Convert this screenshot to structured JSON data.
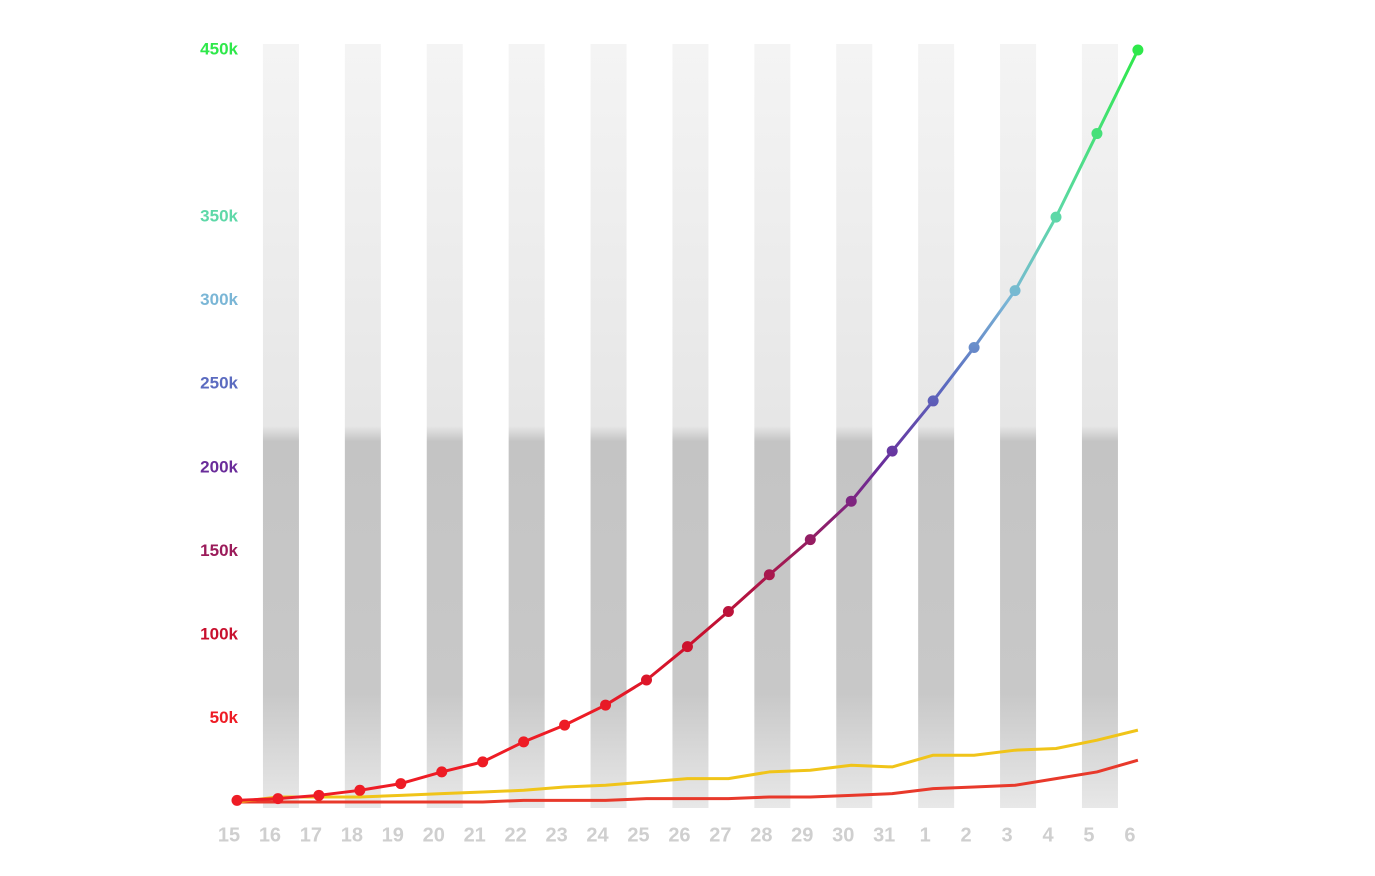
{
  "chart_data": {
    "type": "line",
    "categories": [
      "15",
      "16",
      "17",
      "18",
      "19",
      "20",
      "21",
      "22",
      "23",
      "24",
      "25",
      "26",
      "27",
      "28",
      "29",
      "30",
      "31",
      "1",
      "2",
      "3",
      "4",
      "5",
      "6"
    ],
    "series": [
      {
        "values": [
          1000,
          2000,
          4000,
          7000,
          11000,
          18000,
          24000,
          36000,
          46000,
          58000,
          73000,
          93000,
          114000,
          136000,
          157000,
          180000,
          210000,
          240000,
          272000,
          306000,
          350000,
          400000,
          450000
        ],
        "markers": true
      },
      {
        "color": "#f0c419",
        "values": [
          0,
          3000,
          3000,
          3000,
          4000,
          5000,
          6000,
          7000,
          9000,
          10000,
          12000,
          14000,
          14000,
          18000,
          19000,
          22000,
          21000,
          28000,
          28000,
          31000,
          32000,
          37000,
          43000
        ]
      },
      {
        "color": "#e8392b",
        "values": [
          0,
          0,
          0,
          0,
          0,
          0,
          0,
          1000,
          1000,
          1000,
          2000,
          2000,
          2000,
          3000,
          3000,
          4000,
          5000,
          8000,
          9000,
          10000,
          14000,
          18000,
          25000
        ]
      }
    ],
    "ylim": [
      0,
      450000
    ],
    "yticks": [
      {
        "value": 50000,
        "label": "50k"
      },
      {
        "value": 100000,
        "label": "100k"
      },
      {
        "value": 150000,
        "label": "150k"
      },
      {
        "value": 200000,
        "label": "200k"
      },
      {
        "value": 250000,
        "label": "250k"
      },
      {
        "value": 300000,
        "label": "300k"
      },
      {
        "value": 350000,
        "label": "350k"
      },
      {
        "value": 450000,
        "label": "450k"
      }
    ],
    "ytick_colors": [
      "#ee1c25",
      "#c8102e",
      "#9b1b5a",
      "#6a2c9a",
      "#5b6bc0",
      "#7ab6d6",
      "#5ed8a8",
      "#2ee84a"
    ]
  }
}
